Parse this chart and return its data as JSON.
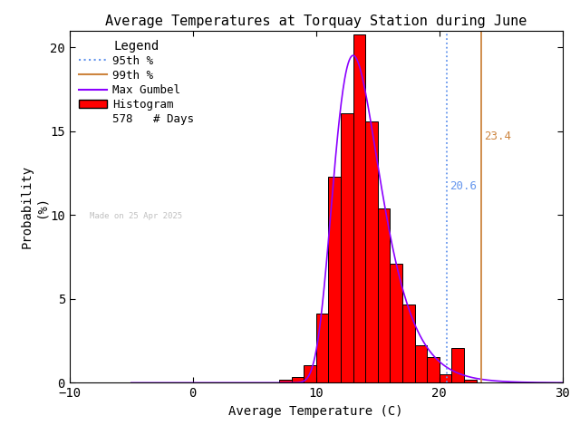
{
  "title": "Average Temperatures at Torquay Station during June",
  "xlabel": "Average Temperature (C)",
  "ylabel": "Probability\n(%)",
  "xlim": [
    -10,
    30
  ],
  "ylim": [
    0,
    21
  ],
  "yticks": [
    0,
    5,
    10,
    15,
    20
  ],
  "xticks": [
    -10,
    0,
    10,
    20,
    30
  ],
  "bar_edges": [
    7,
    8,
    9,
    10,
    11,
    12,
    13,
    14,
    15,
    16,
    17,
    18,
    19,
    20,
    21,
    22,
    23,
    24
  ],
  "bar_heights": [
    0.17,
    0.35,
    1.04,
    4.15,
    12.28,
    16.09,
    20.76,
    15.57,
    10.38,
    7.09,
    4.67,
    2.25,
    1.56,
    0.52,
    2.08,
    0.17,
    0.0,
    0.0
  ],
  "bar_color": "#ff0000",
  "bar_edgecolor": "#000000",
  "gumbel_mu": 12.3,
  "gumbel_beta": 1.85,
  "gumbel_color": "#8b00ff",
  "p95_value": 20.6,
  "p95_color": "#6495ed",
  "p99_value": 23.4,
  "p99_color": "#cd853f",
  "n_days": 578,
  "watermark": "Made on 25 Apr 2025",
  "watermark_color": "#c0c0c0",
  "background_color": "#ffffff",
  "title_fontsize": 11,
  "axis_fontsize": 10,
  "tick_fontsize": 10,
  "legend_fontsize": 9,
  "annot_fontsize": 9
}
